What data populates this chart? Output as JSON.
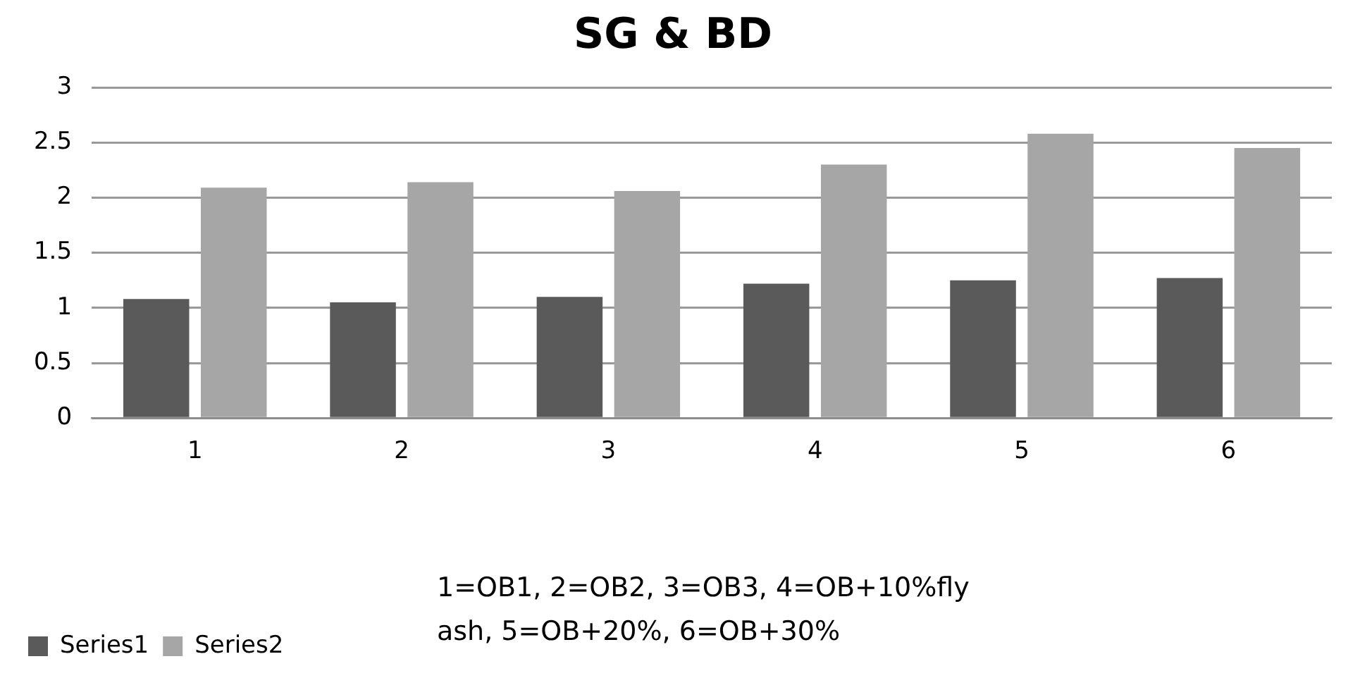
{
  "chart_data": {
    "type": "bar",
    "title": "SG & BD",
    "categories": [
      "1",
      "2",
      "3",
      "4",
      "5",
      "6"
    ],
    "series": [
      {
        "name": "Series1",
        "color": "#5a5a5a",
        "values": [
          1.08,
          1.05,
          1.1,
          1.22,
          1.25,
          1.27
        ]
      },
      {
        "name": "Series2",
        "color": "#a6a6a6",
        "values": [
          2.09,
          2.14,
          2.06,
          2.3,
          2.58,
          2.45
        ]
      }
    ],
    "ylim": [
      0,
      3
    ],
    "yticks": [
      0,
      0.5,
      1,
      1.5,
      2,
      2.5,
      3
    ],
    "grid": "y",
    "legend": "bottom left",
    "annotations": [
      "1=OB1, 2=OB2, 3=OB3, 4=OB+10%fly ash, 5=OB+20%, 6=OB+30%"
    ]
  }
}
